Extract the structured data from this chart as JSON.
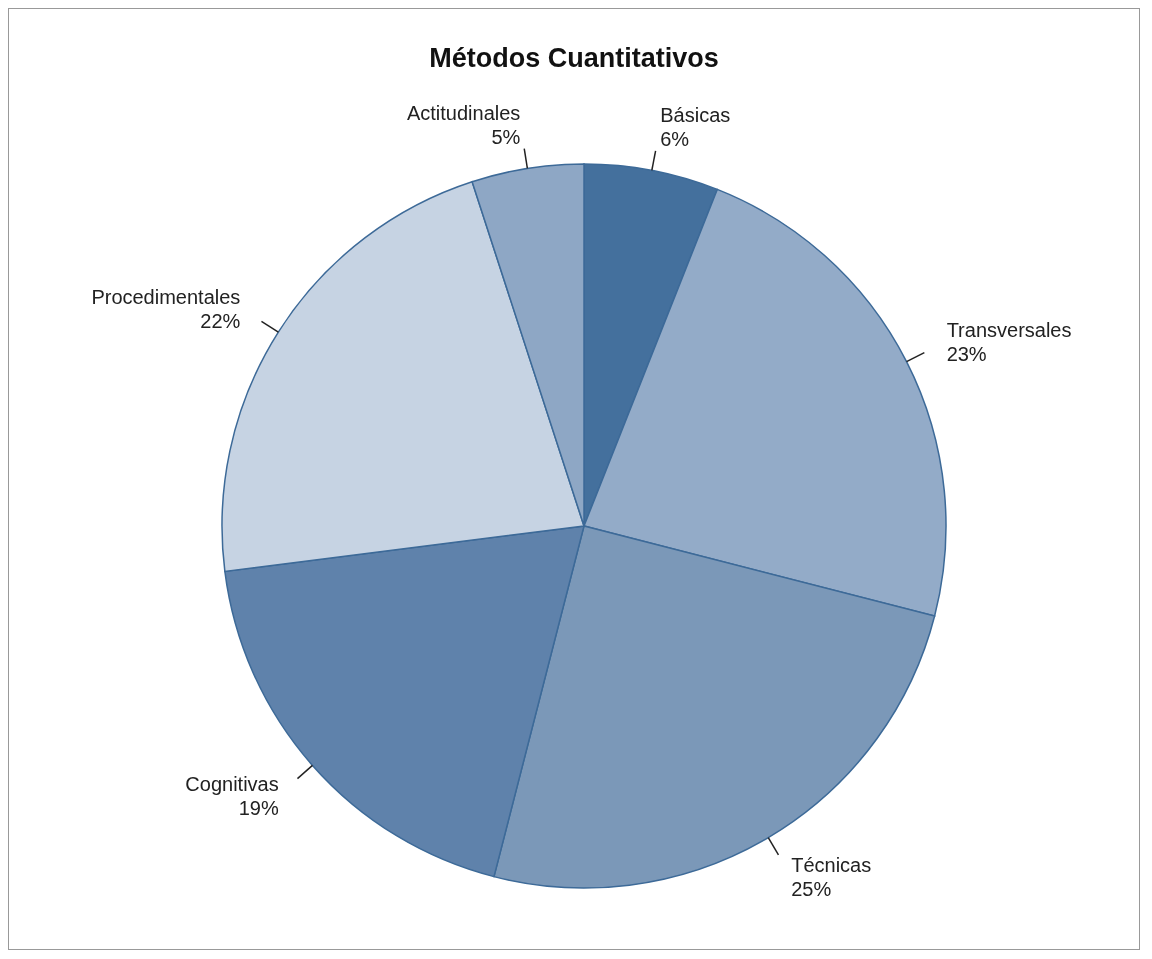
{
  "chart_data": {
    "type": "pie",
    "title": "Métodos Cuantitativos",
    "categories": [
      "Básicas",
      "Transversales",
      "Técnicas",
      "Cognitivas",
      "Procedimentales",
      "Actitudinales"
    ],
    "values": [
      6,
      23,
      25,
      19,
      22,
      5
    ],
    "value_labels": [
      "6%",
      "23%",
      "25%",
      "19%",
      "22%",
      "5%"
    ],
    "colors": [
      "#44709d",
      "#93abc8",
      "#7b98b8",
      "#5f82ab",
      "#c6d3e3",
      "#8ea7c5"
    ],
    "legend": false
  }
}
